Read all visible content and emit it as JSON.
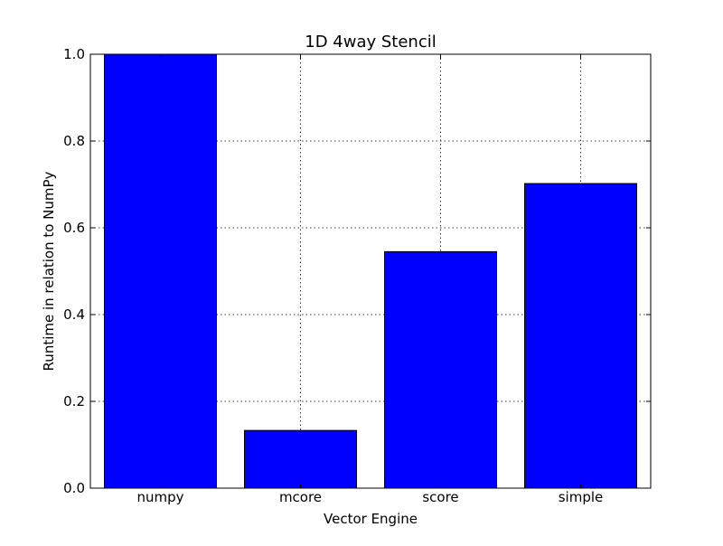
{
  "chart_data": {
    "type": "bar",
    "title": "1D 4way Stencil",
    "xlabel": "Vector Engine",
    "ylabel": "Runtime in relation to NumPy",
    "categories": [
      "numpy",
      "mcore",
      "score",
      "simple"
    ],
    "values": [
      1.0,
      0.133,
      0.545,
      0.702
    ],
    "ylim": [
      0.0,
      1.0
    ],
    "yticks": [
      "0.0",
      "0.2",
      "0.4",
      "0.6",
      "0.8",
      "1.0"
    ],
    "grid": true,
    "bar_color": "#0000ff",
    "edge_color": "#000000"
  }
}
